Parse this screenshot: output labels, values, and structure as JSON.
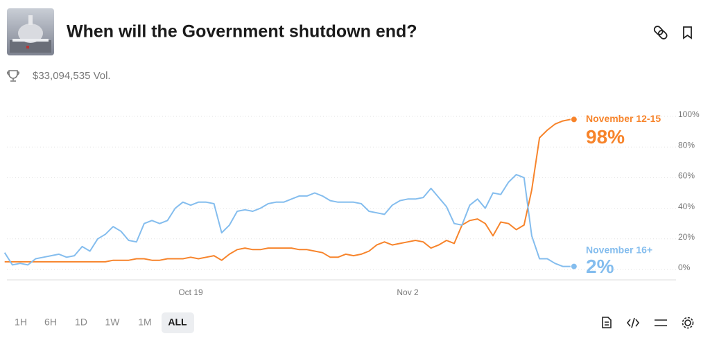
{
  "header": {
    "title": "When will the Government shutdown end?",
    "volume": "$33,094,535 Vol."
  },
  "time_ranges": [
    "1H",
    "6H",
    "1D",
    "1W",
    "1M",
    "ALL"
  ],
  "active_range": 5,
  "chart_data": {
    "type": "line",
    "categories": [
      null,
      null,
      null,
      null,
      null,
      null,
      null,
      null,
      null,
      null,
      null,
      null,
      null,
      null,
      null,
      null,
      null,
      null,
      null,
      null,
      null,
      null,
      null,
      null,
      "Oct 19",
      null,
      null,
      null,
      null,
      null,
      null,
      null,
      null,
      null,
      null,
      null,
      null,
      null,
      null,
      null,
      null,
      null,
      null,
      null,
      null,
      null,
      null,
      null,
      null,
      null,
      null,
      null,
      "Nov 2",
      null,
      null,
      null,
      null,
      null,
      null,
      null,
      null,
      null,
      null,
      null,
      null,
      null,
      null,
      null,
      null,
      null,
      null,
      null,
      null,
      null
    ],
    "series": [
      {
        "name": "November 12-15",
        "color": "#f7842b",
        "value_labels": [
          null,
          null,
          null,
          null,
          null,
          null,
          null,
          null,
          null,
          null,
          null,
          null,
          null,
          null,
          null,
          null,
          null,
          null,
          null,
          null,
          null,
          null,
          null,
          null,
          null,
          null,
          null,
          null,
          null,
          null,
          null,
          null,
          null,
          null,
          null,
          null,
          null,
          null,
          null,
          null,
          null,
          null,
          null,
          null,
          null,
          null,
          null,
          null,
          null,
          null,
          null,
          null,
          null,
          null,
          null,
          null,
          null,
          null,
          null,
          null,
          null,
          null,
          null,
          null,
          null,
          null,
          null,
          null,
          null,
          null,
          null,
          null,
          null,
          "98%"
        ],
        "values": [
          5,
          5,
          5,
          5,
          5,
          5,
          5,
          5,
          5,
          5,
          5,
          5,
          5,
          5,
          6,
          6,
          6,
          7,
          7,
          6,
          6,
          7,
          7,
          7,
          8,
          7,
          8,
          9,
          6,
          10,
          13,
          14,
          13,
          13,
          14,
          14,
          14,
          14,
          13,
          13,
          12,
          11,
          8,
          8,
          10,
          9,
          10,
          12,
          16,
          18,
          16,
          17,
          18,
          19,
          18,
          14,
          16,
          19,
          17,
          29,
          32,
          33,
          30,
          22,
          31,
          30,
          26,
          29,
          52,
          86,
          91,
          95,
          97,
          98
        ]
      },
      {
        "name": "November 16+",
        "color": "#84bdee",
        "value_labels": [
          null,
          null,
          null,
          null,
          null,
          null,
          null,
          null,
          null,
          null,
          null,
          null,
          null,
          null,
          null,
          null,
          null,
          null,
          null,
          null,
          null,
          null,
          null,
          null,
          null,
          null,
          null,
          null,
          null,
          null,
          null,
          null,
          null,
          null,
          null,
          null,
          null,
          null,
          null,
          null,
          null,
          null,
          null,
          null,
          null,
          null,
          null,
          null,
          null,
          null,
          null,
          null,
          null,
          null,
          null,
          null,
          null,
          null,
          null,
          null,
          null,
          null,
          null,
          null,
          null,
          null,
          null,
          null,
          null,
          null,
          null,
          null,
          null,
          "2%"
        ],
        "values": [
          11,
          3,
          4,
          3,
          7,
          8,
          9,
          10,
          8,
          9,
          15,
          12,
          20,
          23,
          28,
          25,
          19,
          18,
          30,
          32,
          30,
          32,
          40,
          44,
          42,
          44,
          44,
          43,
          24,
          29,
          38,
          39,
          38,
          40,
          43,
          44,
          44,
          46,
          48,
          48,
          50,
          48,
          45,
          44,
          44,
          44,
          43,
          38,
          37,
          36,
          42,
          45,
          46,
          46,
          47,
          53,
          47,
          41,
          30,
          29,
          42,
          46,
          40,
          50,
          49,
          57,
          62,
          60,
          22,
          7,
          7,
          4,
          2,
          2
        ]
      }
    ],
    "ylim": [
      0,
      100
    ],
    "yticks": [
      {
        "value": 0,
        "label": "0%"
      },
      {
        "value": 20,
        "label": "20%"
      },
      {
        "value": 40,
        "label": "40%"
      },
      {
        "value": 60,
        "label": "60%"
      },
      {
        "value": 80,
        "label": "80%"
      },
      {
        "value": 100,
        "label": "100%"
      }
    ],
    "grid": true
  }
}
